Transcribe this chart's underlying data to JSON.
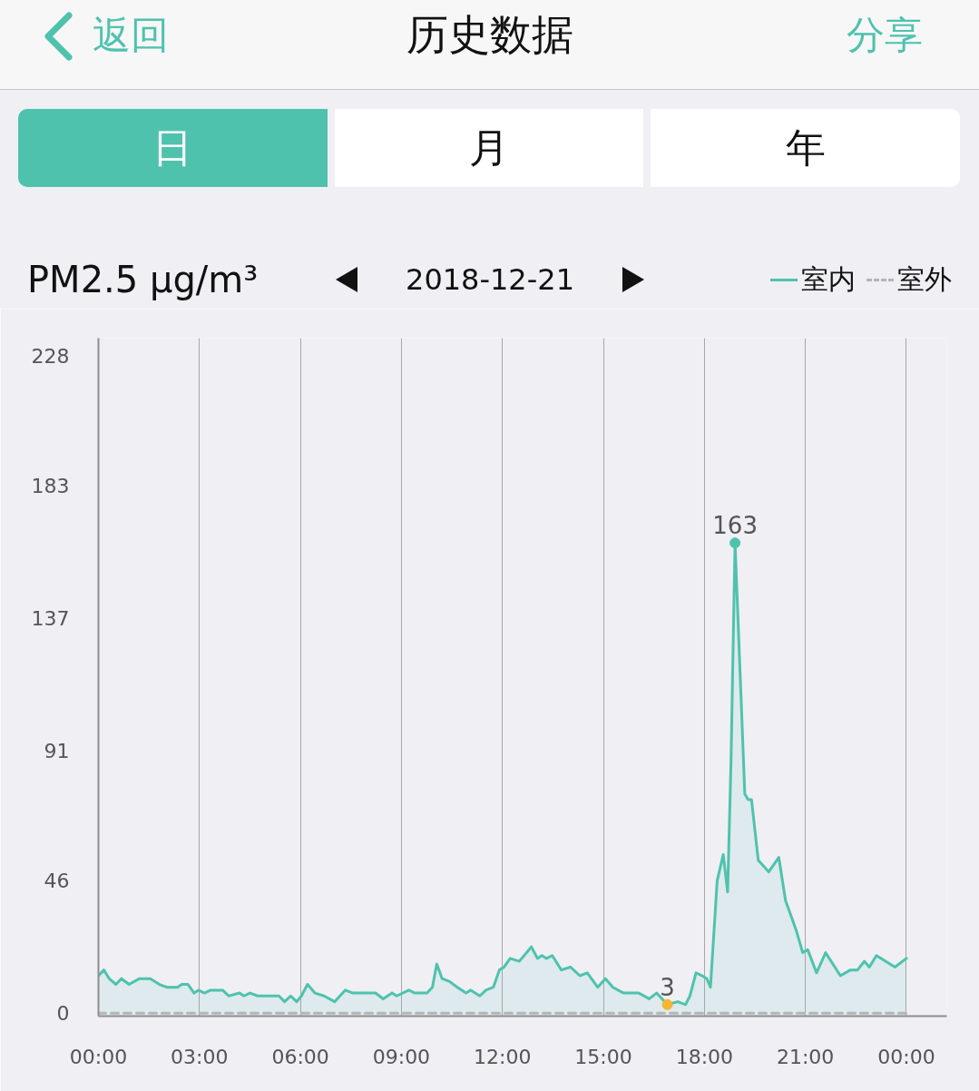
{
  "chart_data": {
    "type": "area",
    "title": "历史数据",
    "subtitle": "2018-12-21",
    "ylabel": "PM2.5 µg/m³",
    "annotations": [
      "返回",
      "分享",
      "日",
      "月",
      "年",
      {
        "text": "163",
        "x": 18.91,
        "y": 163
      },
      {
        "text": "3",
        "x": 16.9,
        "y": 3
      }
    ],
    "xlim": [
      0,
      25.2
    ],
    "xticks": [
      {
        "value": 0,
        "label": "00:00"
      },
      {
        "value": 3,
        "label": "03:00"
      },
      {
        "value": 6,
        "label": "06:00"
      },
      {
        "value": 9,
        "label": "09:00"
      },
      {
        "value": 12,
        "label": "12:00"
      },
      {
        "value": 15,
        "label": "15:00"
      },
      {
        "value": 18,
        "label": "18:00"
      },
      {
        "value": 21,
        "label": "21:00"
      },
      {
        "value": 24,
        "label": "00:00"
      }
    ],
    "ylim": [
      -1,
      234
    ],
    "yticks": [
      0,
      46,
      91,
      137,
      183,
      228
    ],
    "grid": "x",
    "legend": "top right",
    "series": [
      {
        "name": "室内",
        "color": "#4fc2ad",
        "line_style": "solid",
        "x": [
          0,
          0.16,
          0.32,
          0.52,
          0.68,
          0.91,
          1.22,
          1.54,
          1.81,
          2.03,
          2.16,
          2.35,
          2.48,
          2.66,
          2.84,
          2.97,
          3.15,
          3.33,
          3.69,
          3.87,
          4.19,
          4.32,
          4.5,
          4.73,
          5.36,
          5.53,
          5.71,
          5.89,
          6.03,
          6.21,
          6.43,
          6.7,
          7.02,
          7.33,
          7.56,
          8.23,
          8.46,
          8.72,
          8.86,
          9.22,
          9.4,
          9.76,
          9.92,
          10.05,
          10.21,
          10.43,
          10.66,
          10.92,
          11.06,
          11.33,
          11.51,
          11.73,
          11.91,
          12.05,
          12.23,
          12.5,
          12.86,
          13.04,
          13.17,
          13.31,
          13.48,
          13.75,
          14.02,
          14.3,
          14.52,
          14.83,
          15.06,
          15.28,
          15.6,
          16.05,
          16.36,
          16.58,
          16.9,
          17.21,
          17.44,
          17.57,
          17.75,
          17.93,
          18.07,
          18.18,
          18.38,
          18.56,
          18.69,
          18.79,
          18.91,
          19.2,
          19.3,
          19.4,
          19.6,
          19.91,
          20.21,
          20.41,
          20.72,
          20.92,
          21.07,
          21.33,
          21.6,
          22.04,
          22.34,
          22.55,
          22.75,
          22.9,
          23.11,
          23.66,
          24
        ],
        "values": [
          13,
          15,
          12,
          10,
          12,
          10,
          12,
          12,
          10,
          9,
          9,
          9,
          10,
          10,
          7,
          8,
          7,
          8,
          8,
          6,
          7,
          6,
          7,
          6,
          6,
          4,
          6,
          4,
          6,
          10,
          7,
          6,
          4,
          8,
          7,
          7,
          5,
          7,
          6,
          8,
          7,
          7,
          9,
          17,
          12,
          11,
          9,
          7,
          8,
          6,
          8,
          9,
          15,
          16,
          19,
          18,
          23,
          19,
          20,
          19,
          20,
          15,
          16,
          13,
          14,
          9,
          12,
          9,
          7,
          7,
          5,
          7,
          3,
          4,
          3,
          6,
          14,
          13,
          12,
          9,
          46,
          55,
          42,
          87,
          163,
          76,
          74,
          74,
          53,
          49,
          54,
          39,
          29,
          21,
          22,
          14,
          21,
          13,
          15,
          15,
          18,
          16,
          20,
          16,
          19
        ]
      },
      {
        "name": "室外",
        "type": "line",
        "color": "#b5b5b5",
        "line_style": "dashed",
        "x": [
          0,
          24
        ],
        "values": [
          0,
          0
        ]
      },
      {
        "type": "scatter",
        "marker": "circle",
        "x": [
          18.91,
          16.9
        ],
        "values": [
          163,
          3
        ],
        "colors": [
          "#4fc2ad",
          "#f5b731"
        ]
      }
    ]
  }
}
